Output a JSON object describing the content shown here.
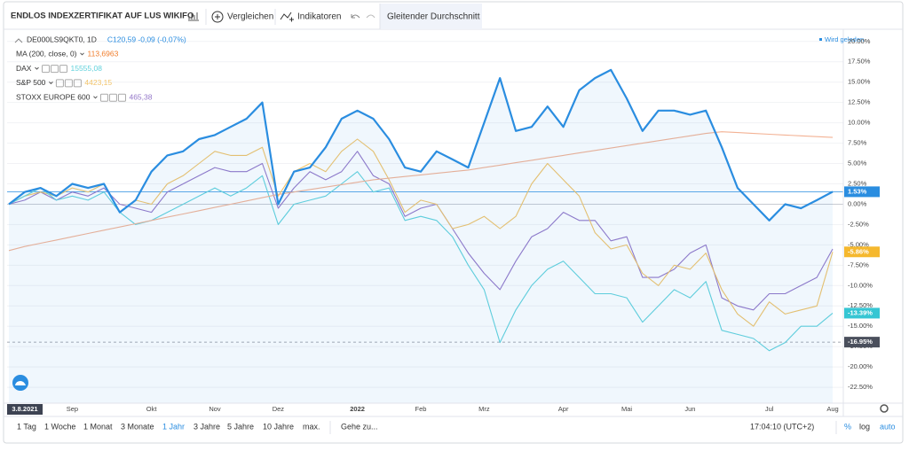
{
  "toolbar": {
    "title": "ENDLOS INDEXZERTIFIKAT AUF LUS WIKIFO",
    "compare": "Vergleichen",
    "indicators": "Indikatoren",
    "active_indicator": "Gleitender Durchschnitt"
  },
  "loading": "Wird geladen",
  "bottom_bar": {
    "ranges": [
      "1 Tag",
      "1 Woche",
      "1 Monat",
      "3 Monate",
      "1 Jahr",
      "3 Jahre",
      "5 Jahre",
      "10 Jahre",
      "max."
    ],
    "active_range": 4,
    "goto": "Gehe zu...",
    "time": "17:04:10 (UTC+2)",
    "percent": "%",
    "log": "log",
    "auto": "auto"
  },
  "chart_data": {
    "type": "line",
    "categories": [
      "3.8.2021",
      null,
      null,
      null,
      "Sep",
      null,
      null,
      null,
      null,
      "Okt",
      null,
      null,
      null,
      "Nov",
      null,
      null,
      null,
      "Dez",
      null,
      null,
      null,
      null,
      "2022",
      null,
      null,
      null,
      "Feb",
      null,
      null,
      null,
      "Mrz",
      null,
      null,
      null,
      null,
      "Apr",
      null,
      null,
      null,
      "Mai",
      null,
      null,
      null,
      "Jun",
      null,
      null,
      null,
      null,
      "Jul",
      null,
      null,
      null,
      "Aug"
    ],
    "ylim": [
      -24.45,
      21.5
    ],
    "yticks": [
      {
        "value": 20,
        "label": "20.00%"
      },
      {
        "value": 17.5,
        "label": "17.50%"
      },
      {
        "value": 15,
        "label": "15.00%"
      },
      {
        "value": 12.5,
        "label": "12.50%"
      },
      {
        "value": 10,
        "label": "10.00%"
      },
      {
        "value": 7.5,
        "label": "7.50%"
      },
      {
        "value": 5,
        "label": "5.00%"
      },
      {
        "value": 2.5,
        "label": "2.50%"
      },
      {
        "value": 0,
        "label": "0.00%"
      },
      {
        "value": -2.5,
        "label": "-2.50%"
      },
      {
        "value": -5,
        "label": "-5.00%"
      },
      {
        "value": -7.5,
        "label": "-7.50%"
      },
      {
        "value": -10,
        "label": "-10.00%"
      },
      {
        "value": -12.5,
        "label": "-12.50%"
      },
      {
        "value": -15,
        "label": "-15.00%"
      },
      {
        "value": -17.5,
        "label": "-17.50%"
      },
      {
        "value": -20,
        "label": "-20.00%"
      },
      {
        "value": -22.5,
        "label": "-22.50%"
      }
    ],
    "grid": true,
    "series": [
      {
        "name": "DE000LS9QKT0, 1D",
        "legend_value": "C120,59 -0,09 (-0,07%)",
        "color": "#2a8de0",
        "fill": true,
        "values": [
          0,
          1.5,
          2,
          1,
          2.5,
          2,
          2.5,
          -1,
          0.5,
          4,
          6,
          6.5,
          8,
          8.5,
          9.5,
          10.5,
          12.5,
          0,
          4,
          4.5,
          7,
          10.5,
          11.5,
          10.5,
          8,
          4.5,
          4,
          6.5,
          5.5,
          4.5,
          10,
          15.5,
          9,
          9.5,
          12,
          9.5,
          14,
          15.5,
          16.5,
          13,
          9,
          11.5,
          11.5,
          11,
          11.5,
          7,
          2,
          0,
          -2,
          0,
          -0.5,
          0.5,
          1.53
        ]
      },
      {
        "name": "MA (200, close, 0)",
        "legend_value": "113,6963",
        "color": "#f3b294",
        "values": [
          -5.7,
          -5.2,
          -4.8,
          -4.4,
          -4,
          -3.6,
          -3.2,
          -2.8,
          -2.4,
          -2,
          -1.6,
          -1.2,
          -0.8,
          -0.4,
          0,
          0.4,
          0.8,
          1.2,
          1.5,
          1.8,
          2.1,
          2.4,
          2.7,
          3,
          3.2,
          3.4,
          3.6,
          3.8,
          4,
          4.2,
          4.5,
          4.8,
          5.1,
          5.4,
          5.7,
          6,
          6.3,
          6.6,
          6.9,
          7.2,
          7.5,
          7.8,
          8.1,
          8.4,
          8.7,
          8.9,
          8.8,
          8.7,
          8.6,
          8.5,
          8.4,
          8.3,
          8.2
        ]
      },
      {
        "name": "DAX",
        "legend_value": "15555,08",
        "color": "#62d2dc",
        "values": [
          0,
          1,
          2,
          0.5,
          1,
          0.5,
          1.5,
          -1,
          -2.5,
          -2,
          -1,
          0,
          1,
          2,
          1,
          2,
          3.5,
          -2.5,
          0,
          0.5,
          1,
          2.5,
          4,
          1.5,
          2,
          -2,
          -1.5,
          -2,
          -4,
          -7.5,
          -10.5,
          -17,
          -13,
          -10,
          -8,
          -7,
          -9,
          -11,
          -11,
          -11.5,
          -14.5,
          -12.5,
          -10.5,
          -11.5,
          -9.5,
          -15.5,
          -16,
          -16.5,
          -18,
          -17,
          -15,
          -15,
          -13.39
        ]
      },
      {
        "name": "S&P 500",
        "legend_value": "4423,15",
        "color": "#f2c46a",
        "values": [
          0,
          1,
          1.5,
          1,
          2,
          1.5,
          2.5,
          -1,
          0.5,
          0,
          2.5,
          3.5,
          5,
          6.5,
          6,
          6,
          7,
          1,
          4,
          5,
          4,
          6.5,
          8,
          6.5,
          3,
          -1,
          0.5,
          0,
          -3,
          -2.5,
          -1.5,
          -3,
          -1.5,
          2.5,
          5,
          3,
          1,
          -3.5,
          -5.5,
          -5,
          -8.5,
          -10,
          -7.5,
          -8,
          -6,
          -10.5,
          -13.5,
          -15,
          -12,
          -13.5,
          -13,
          -12.5,
          -5.86
        ]
      },
      {
        "name": "STOXX EUROPE 600",
        "legend_value": "465,38",
        "color": "#9478c9",
        "values": [
          0,
          0.5,
          1.5,
          0.5,
          1.5,
          1,
          2,
          0,
          -0.5,
          -1,
          1.5,
          2.5,
          3.5,
          4.5,
          4,
          4,
          5,
          -0.5,
          2,
          4,
          3,
          4,
          6.5,
          3.5,
          2.5,
          -1.5,
          -0.5,
          0,
          -3,
          -6,
          -8.5,
          -10.5,
          -7,
          -4,
          -3,
          -1,
          -2,
          -2,
          -4.5,
          -4,
          -9,
          -9,
          -8,
          -6,
          -5,
          -11.5,
          -12.5,
          -13,
          -11,
          -11,
          -10,
          -9,
          -5.5
        ]
      }
    ],
    "price_labels": [
      {
        "value": 1.53,
        "label": "1.53%",
        "color": "#2a8de0",
        "line_style": "solid"
      },
      {
        "value": -5.86,
        "label": "-5.86%",
        "color": "#f5b82e"
      },
      {
        "value": -13.39,
        "label": "-13.39%",
        "color": "#36c6d3"
      },
      {
        "value": -16.95,
        "label": "-16.95%",
        "color": "#4a4f5c",
        "line_style": "dashed"
      }
    ]
  }
}
